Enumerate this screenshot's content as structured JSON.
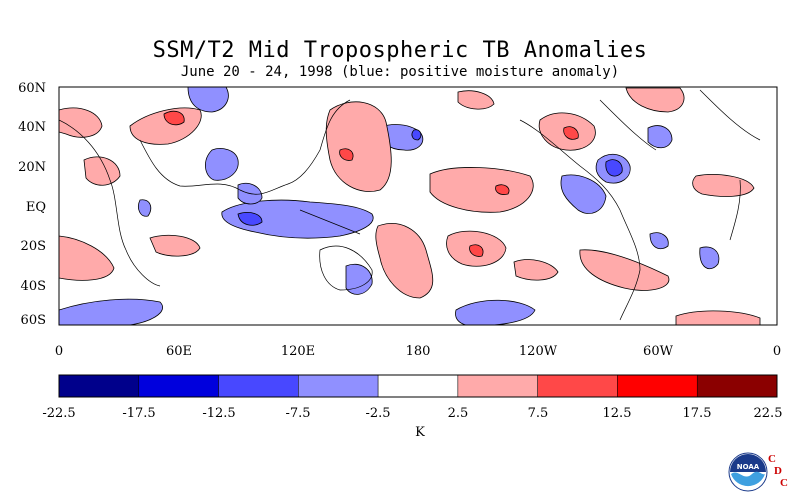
{
  "title": "SSM/T2 Mid Tropospheric TB Anomalies",
  "subtitle": "June 20 - 24, 1998 (blue: positive moisture anomaly)",
  "lat_labels": [
    "60N",
    "40N",
    "20N",
    "EQ",
    "20S",
    "40S",
    "60S"
  ],
  "lat_values": [
    60,
    40,
    20,
    0,
    -20,
    -40,
    -60
  ],
  "lon_labels": [
    "0",
    "60E",
    "120E",
    "180",
    "120W",
    "60W",
    "0"
  ],
  "colorbar": {
    "ticks": [
      "-22.5",
      "-17.5",
      "-12.5",
      "-7.5",
      "-2.5",
      "2.5",
      "7.5",
      "12.5",
      "17.5",
      "22.5"
    ],
    "colors": [
      "#00008b",
      "#0000dd",
      "#4848ff",
      "#9090ff",
      "#ffffff",
      "#ffaaaa",
      "#ff4848",
      "#ff0000",
      "#8b0000"
    ],
    "unit": "K"
  },
  "anomaly_colors": {
    "positive_moisture": "#9090ff",
    "strong_positive_moisture": "#4848ff",
    "warm": "#ffaaaa",
    "strong_warm": "#ff4848"
  },
  "logo": {
    "text": "NOAA",
    "icon": "noaa-logo"
  },
  "credit": [
    "C",
    "D",
    "C"
  ]
}
